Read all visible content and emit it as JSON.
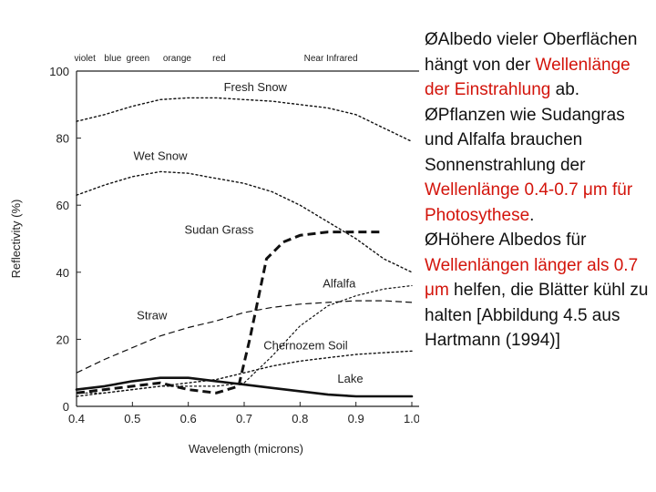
{
  "chart_data": {
    "type": "line",
    "xlabel": "Wavelength (microns)",
    "ylabel": "Reflectivity (%)",
    "xlim": [
      0.4,
      1.0
    ],
    "ylim": [
      0,
      100
    ],
    "x_ticks": [
      "0.4",
      "0.5",
      "0.6",
      "0.7",
      "0.8",
      "0.9",
      "1.0"
    ],
    "y_ticks": [
      "0",
      "20",
      "40",
      "60",
      "80",
      "100"
    ],
    "bands": [
      {
        "label": "violet",
        "x": 0.415
      },
      {
        "label": "blue",
        "x": 0.465
      },
      {
        "label": "green",
        "x": 0.51
      },
      {
        "label": "orange",
        "x": 0.58
      },
      {
        "label": "red",
        "x": 0.655
      },
      {
        "label": "Near Infrared",
        "x": 0.855
      }
    ],
    "series": [
      {
        "name": "Fresh Snow",
        "style": "dotted",
        "width": 1.4,
        "label_at": [
          0.72,
          94
        ],
        "x": [
          0.4,
          0.45,
          0.5,
          0.55,
          0.6,
          0.65,
          0.7,
          0.75,
          0.8,
          0.85,
          0.9,
          0.95,
          1.0
        ],
        "y": [
          85,
          87,
          89.5,
          91.5,
          92,
          92,
          91.5,
          91,
          90,
          89,
          87,
          83,
          79
        ]
      },
      {
        "name": "Wet Snow",
        "style": "dotted",
        "width": 1.4,
        "label_at": [
          0.55,
          73.5
        ],
        "x": [
          0.4,
          0.45,
          0.5,
          0.55,
          0.6,
          0.65,
          0.7,
          0.75,
          0.8,
          0.85,
          0.9,
          0.95,
          1.0
        ],
        "y": [
          63,
          66,
          68.5,
          70,
          69.5,
          68,
          66.5,
          64,
          60,
          55,
          50,
          44,
          40
        ]
      },
      {
        "name": "Sudan Grass",
        "style": "dashed-bold",
        "width": 3,
        "label_at": [
          0.655,
          51.5
        ],
        "x": [
          0.4,
          0.45,
          0.5,
          0.55,
          0.6,
          0.65,
          0.69,
          0.71,
          0.74,
          0.77,
          0.8,
          0.85,
          0.9,
          0.95
        ],
        "y": [
          4,
          5,
          6,
          7,
          5,
          4,
          6,
          20,
          44,
          49,
          51,
          52,
          52,
          52
        ]
      },
      {
        "name": "Alfalfa",
        "style": "dotted",
        "width": 1.2,
        "label_at": [
          0.87,
          35.5
        ],
        "x": [
          0.4,
          0.45,
          0.5,
          0.55,
          0.6,
          0.65,
          0.7,
          0.75,
          0.8,
          0.85,
          0.9,
          0.95,
          1.0
        ],
        "y": [
          4,
          4,
          5,
          6,
          6,
          6,
          7,
          15,
          24,
          30,
          33,
          35,
          36
        ]
      },
      {
        "name": "Straw",
        "style": "dashed",
        "width": 1.2,
        "label_at": [
          0.535,
          26
        ],
        "x": [
          0.4,
          0.45,
          0.5,
          0.55,
          0.6,
          0.65,
          0.7,
          0.75,
          0.8,
          0.85,
          0.9,
          0.95,
          1.0
        ],
        "y": [
          10,
          14,
          17.5,
          21,
          23.5,
          25.5,
          28,
          29.5,
          30.5,
          31,
          31.5,
          31.5,
          31
        ]
      },
      {
        "name": "Chernozem Soil",
        "style": "dotted",
        "width": 1.4,
        "label_at": [
          0.81,
          17
        ],
        "x": [
          0.4,
          0.45,
          0.5,
          0.55,
          0.6,
          0.65,
          0.7,
          0.75,
          0.8,
          0.85,
          0.9,
          0.95,
          1.0
        ],
        "y": [
          3,
          4,
          5,
          6,
          7,
          8,
          10,
          12,
          13.5,
          14.5,
          15.5,
          16,
          16.5
        ]
      },
      {
        "name": "Lake",
        "style": "solid",
        "width": 2.6,
        "label_at": [
          0.89,
          7
        ],
        "x": [
          0.4,
          0.45,
          0.5,
          0.55,
          0.6,
          0.65,
          0.7,
          0.75,
          0.8,
          0.85,
          0.9,
          0.95,
          1.0
        ],
        "y": [
          5,
          6,
          7.5,
          8.5,
          8.5,
          7.5,
          6.5,
          5.5,
          4.5,
          3.5,
          3,
          3,
          3
        ]
      }
    ]
  },
  "notes": [
    {
      "segments": [
        {
          "text": "ØAlbedo vieler Oberflächen hängt von der ",
          "color": "default"
        },
        {
          "text": "Wellenlänge der Einstrahlung",
          "color": "red"
        },
        {
          "text": " ab.",
          "color": "default"
        }
      ]
    },
    {
      "segments": [
        {
          "text": "ØPflanzen wie Sudangras und Alfalfa brauchen Sonnenstrahlung der ",
          "color": "default"
        },
        {
          "text": "Wellenlänge 0.4-0.7 μm für Photosythese",
          "color": "red"
        },
        {
          "text": ".",
          "color": "default"
        }
      ]
    },
    {
      "segments": [
        {
          "text": "ØHöhere Albedos für ",
          "color": "default"
        },
        {
          "text": "Wellenlängen länger als 0.7 μm",
          "color": "red"
        },
        {
          "text": " helfen, die Blätter kühl zu halten [Abbildung 4.5 aus Hartmann (1994)]",
          "color": "default"
        }
      ]
    }
  ],
  "colors": {
    "text": "#111111",
    "highlight": "#d3140b",
    "curves": "#111111"
  }
}
